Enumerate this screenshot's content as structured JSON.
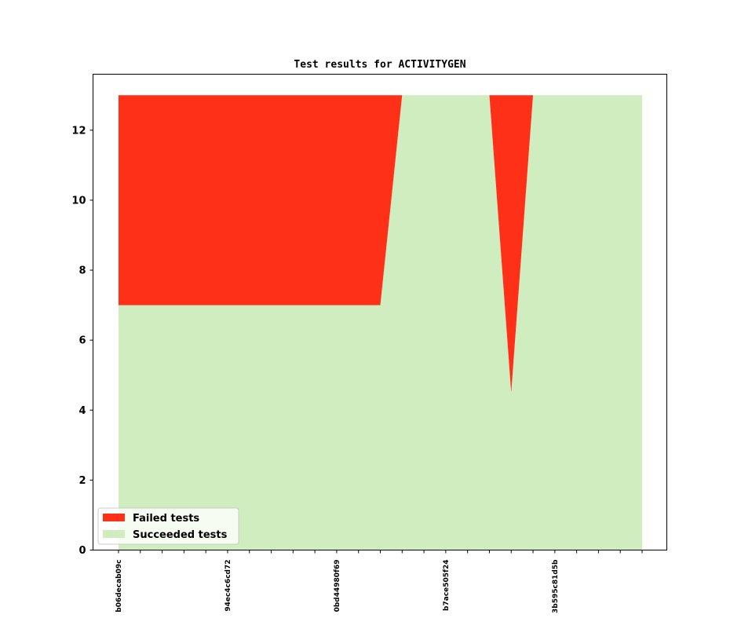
{
  "chart_data": {
    "type": "area",
    "stacked": true,
    "title": "Test results for ACTIVITYGEN",
    "xlabel": "",
    "ylabel": "",
    "ylim": [
      0,
      13.6
    ],
    "yticks": [
      0,
      2,
      4,
      6,
      8,
      10,
      12
    ],
    "x_count": 25,
    "x_tick_labels": [
      {
        "index": 0,
        "label": "b06decab09c"
      },
      {
        "index": 5,
        "label": "94ec4c6cd72"
      },
      {
        "index": 10,
        "label": "0bd44980f69"
      },
      {
        "index": 15,
        "label": "b7ace505f24"
      },
      {
        "index": 20,
        "label": "3b595c81d5b"
      }
    ],
    "series": [
      {
        "name": "Succeeded tests",
        "color": "#cfedbf",
        "values": [
          7,
          7,
          7,
          7,
          7,
          7,
          7,
          7,
          7,
          7,
          7,
          7,
          7,
          13,
          13,
          13,
          13,
          13,
          4.5,
          13,
          13,
          13,
          13,
          13,
          13
        ]
      },
      {
        "name": "Failed tests",
        "color": "#ff3018",
        "values": [
          6,
          6,
          6,
          6,
          6,
          6,
          6,
          6,
          6,
          6,
          6,
          6,
          6,
          0,
          0,
          0,
          0,
          0,
          8.5,
          0,
          0,
          0,
          0,
          0,
          0
        ]
      }
    ],
    "legend": {
      "placement": "lower-left",
      "entries": [
        {
          "label": "Failed tests",
          "color": "#ff3018"
        },
        {
          "label": "Succeeded tests",
          "color": "#cfedbf"
        }
      ]
    },
    "grid": false
  }
}
